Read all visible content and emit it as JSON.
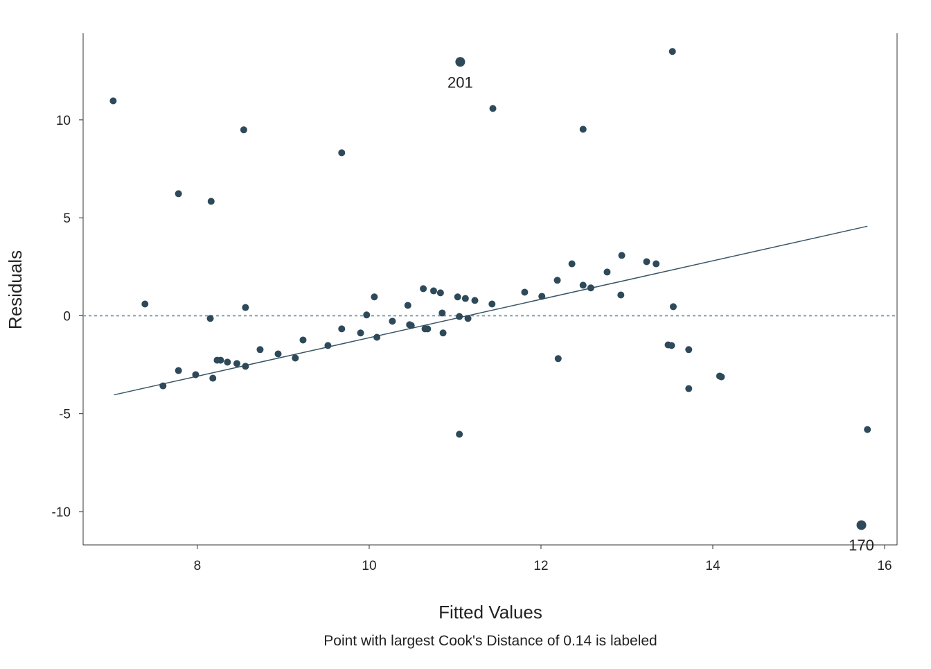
{
  "chart_data": {
    "type": "scatter",
    "caption": "Point with largest Cook's Distance of 0.14 is labeled",
    "x_label": "Fitted Values",
    "y_label": "Residuals",
    "x": [
      7.02,
      7.39,
      7.78,
      7.78,
      7.6,
      7.98,
      8.16,
      8.15,
      8.18,
      8.23,
      8.27,
      8.35,
      8.46,
      8.54,
      8.56,
      8.56,
      8.73,
      8.94,
      9.14,
      9.23,
      9.52,
      9.68,
      9.68,
      9.9,
      9.97,
      10.06,
      10.09,
      10.27,
      10.45,
      10.47,
      10.49,
      10.63,
      10.65,
      10.68,
      10.75,
      10.83,
      10.85,
      10.86,
      11.03,
      11.05,
      11.05,
      11.06,
      11.12,
      11.15,
      11.23,
      11.43,
      11.44,
      11.81,
      12.01,
      12.19,
      12.2,
      12.36,
      12.49,
      12.49,
      12.58,
      12.77,
      12.93,
      12.94,
      13.23,
      13.34,
      13.48,
      13.52,
      13.53,
      13.54,
      13.72,
      13.72,
      14.08,
      14.1,
      15.73,
      15.8
    ],
    "values": [
      10.97,
      0.6,
      6.23,
      -2.8,
      -3.58,
      -3.01,
      5.84,
      -0.14,
      -3.19,
      -2.27,
      -2.27,
      -2.37,
      -2.44,
      9.49,
      0.42,
      -2.58,
      -1.73,
      -1.95,
      -2.16,
      -1.24,
      -1.52,
      8.32,
      -0.67,
      -0.88,
      0.04,
      0.96,
      -1.1,
      -0.28,
      0.53,
      -0.46,
      -0.5,
      1.38,
      -0.67,
      -0.67,
      1.27,
      1.17,
      0.14,
      -0.88,
      0.96,
      -0.04,
      -6.05,
      12.96,
      0.88,
      -0.14,
      0.78,
      0.6,
      10.58,
      1.2,
      0.99,
      1.81,
      -2.19,
      2.65,
      9.52,
      1.56,
      1.42,
      2.23,
      1.06,
      3.08,
      2.76,
      2.65,
      -1.49,
      -1.52,
      13.49,
      0.46,
      -1.73,
      -3.72,
      -3.08,
      -3.12,
      -10.69,
      -5.81
    ],
    "color": "#2e4a5a",
    "trend": {
      "x": [
        7.03,
        15.8
      ],
      "values": [
        -4.04,
        4.57
      ],
      "color": "#3a5566"
    },
    "reference_line": 0,
    "reference_color": "#7f9fb5",
    "annotations": [
      {
        "text": "201",
        "x": 11.06,
        "y": 12.96
      },
      {
        "text": "170",
        "x": 15.73,
        "y": -10.69
      }
    ],
    "xlim": [
      6.67,
      16.145
    ],
    "ylim": [
      -11.7,
      14.42
    ],
    "xticks": [
      8,
      10,
      12,
      14,
      16
    ],
    "yticks": [
      -10,
      -5,
      0,
      5,
      10
    ]
  }
}
